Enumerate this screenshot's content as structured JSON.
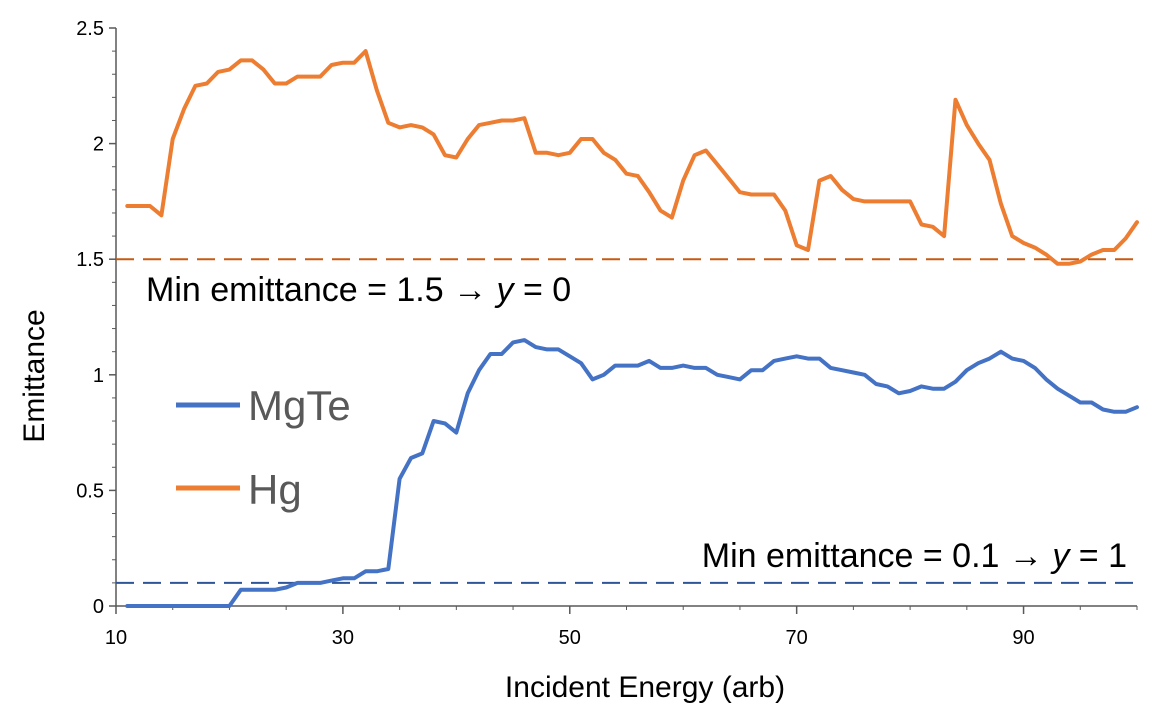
{
  "chart_data": {
    "type": "line",
    "xlabel": "Incident Energy (arb)",
    "ylabel": "Emittance",
    "xlim": [
      10,
      100
    ],
    "ylim": [
      0,
      2.5
    ],
    "x_ticks": [
      10,
      30,
      50,
      70,
      90
    ],
    "y_ticks": [
      0,
      0.5,
      1,
      1.5,
      2,
      2.5
    ],
    "x_tick_labels": [
      "10",
      "30",
      "50",
      "70",
      "90"
    ],
    "y_tick_labels": [
      "0",
      "0.5",
      "1",
      "1.5",
      "2",
      "2.5"
    ],
    "grid": false,
    "legend_position": "left-center",
    "colors": {
      "MgTe": "#4472C4",
      "Hg": "#ED7D31",
      "hg_ref": "#C55A11",
      "mgte_ref": "#2F5597"
    },
    "reference_lines": [
      {
        "y": 1.5,
        "color": "#C55A11",
        "style": "dashed"
      },
      {
        "y": 0.1,
        "color": "#2F5597",
        "style": "dashed"
      }
    ],
    "annotations": {
      "hg_prefix": "Min emittance = 1.5 → ",
      "hg_var": "y",
      "hg_suffix": " = 0",
      "mgte_prefix": "Min emittance = 0.1 → ",
      "mgte_var": "y",
      "mgte_suffix": " = 1"
    },
    "x": [
      11,
      12,
      13,
      14,
      15,
      16,
      17,
      18,
      19,
      20,
      21,
      22,
      23,
      24,
      25,
      26,
      27,
      28,
      29,
      30,
      31,
      32,
      33,
      34,
      35,
      36,
      37,
      38,
      39,
      40,
      41,
      42,
      43,
      44,
      45,
      46,
      47,
      48,
      49,
      50,
      51,
      52,
      53,
      54,
      55,
      56,
      57,
      58,
      59,
      60,
      61,
      62,
      63,
      64,
      65,
      66,
      67,
      68,
      69,
      70,
      71,
      72,
      73,
      74,
      75,
      76,
      77,
      78,
      79,
      80,
      81,
      82,
      83,
      84,
      85,
      86,
      87,
      88,
      89,
      90,
      91,
      92,
      93,
      94,
      95,
      96,
      97,
      98,
      99,
      100
    ],
    "series": [
      {
        "name": "MgTe",
        "values": [
          0,
          0,
          0,
          0,
          0,
          0,
          0,
          0,
          0,
          0,
          0.07,
          0.07,
          0.07,
          0.07,
          0.08,
          0.1,
          0.1,
          0.1,
          0.11,
          0.12,
          0.12,
          0.15,
          0.15,
          0.16,
          0.55,
          0.64,
          0.66,
          0.8,
          0.79,
          0.75,
          0.92,
          1.02,
          1.09,
          1.09,
          1.14,
          1.15,
          1.12,
          1.11,
          1.11,
          1.08,
          1.05,
          0.98,
          1.0,
          1.04,
          1.04,
          1.04,
          1.06,
          1.03,
          1.03,
          1.04,
          1.03,
          1.03,
          1.0,
          0.99,
          0.98,
          1.02,
          1.02,
          1.06,
          1.07,
          1.08,
          1.07,
          1.07,
          1.03,
          1.02,
          1.01,
          1.0,
          0.96,
          0.95,
          0.92,
          0.93,
          0.95,
          0.94,
          0.94,
          0.97,
          1.02,
          1.05,
          1.07,
          1.1,
          1.07,
          1.06,
          1.03,
          0.98,
          0.94,
          0.91,
          0.88,
          0.88,
          0.85,
          0.84,
          0.84,
          0.86
        ]
      },
      {
        "name": "Hg",
        "values": [
          1.73,
          1.73,
          1.73,
          1.69,
          2.02,
          2.15,
          2.25,
          2.26,
          2.31,
          2.32,
          2.36,
          2.36,
          2.32,
          2.26,
          2.26,
          2.29,
          2.29,
          2.29,
          2.34,
          2.35,
          2.35,
          2.4,
          2.23,
          2.09,
          2.07,
          2.08,
          2.07,
          2.04,
          1.95,
          1.94,
          2.02,
          2.08,
          2.09,
          2.1,
          2.1,
          2.11,
          1.96,
          1.96,
          1.95,
          1.96,
          2.02,
          2.02,
          1.96,
          1.93,
          1.87,
          1.86,
          1.79,
          1.71,
          1.68,
          1.84,
          1.95,
          1.97,
          1.91,
          1.85,
          1.79,
          1.78,
          1.78,
          1.78,
          1.71,
          1.56,
          1.54,
          1.84,
          1.86,
          1.8,
          1.76,
          1.75,
          1.75,
          1.75,
          1.75,
          1.75,
          1.65,
          1.64,
          1.6,
          2.19,
          2.08,
          2.0,
          1.93,
          1.74,
          1.6,
          1.57,
          1.55,
          1.52,
          1.48,
          1.48,
          1.49,
          1.52,
          1.54,
          1.54,
          1.59,
          1.66
        ]
      }
    ]
  }
}
